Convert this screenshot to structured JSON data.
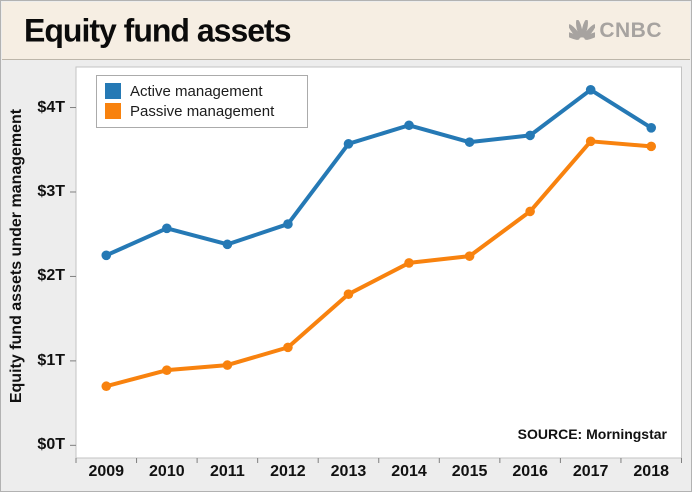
{
  "header": {
    "title": "Equity fund assets",
    "brand": "CNBC"
  },
  "source_note": "SOURCE: Morningstar",
  "icons": {
    "brand_icon": "nbc-peacock-icon"
  },
  "colors": {
    "active_blue": "#2579b5",
    "passive_orange": "#f8820e",
    "header_bg": "#f6eee3",
    "chart_bg": "#ededed",
    "plot_bg": "#ffffff",
    "plot_border": "#c3c3c3",
    "tick_gray": "#7f7f7f",
    "brand_gray": "#a7a3a0",
    "text": "#111111"
  },
  "chart_data": {
    "type": "line",
    "title": "Equity fund assets",
    "ylabel": "Equity fund assets under management",
    "xlabel": "",
    "units": "trillions of dollars",
    "categories": [
      "2009",
      "2010",
      "2011",
      "2012",
      "2013",
      "2014",
      "2015",
      "2016",
      "2017",
      "2018"
    ],
    "ylim": [
      -0.15,
      4.48
    ],
    "grid": false,
    "legend_position": "top-left",
    "yticks": [
      {
        "label": "$4T",
        "value": 4
      },
      {
        "label": "$3T",
        "value": 3
      },
      {
        "label": "$2T",
        "value": 2
      },
      {
        "label": "$1T",
        "value": 1
      },
      {
        "label": "$0T",
        "value": 0
      }
    ],
    "series": [
      {
        "name": "Active management",
        "color": "#2579b5",
        "values": [
          2.25,
          2.57,
          2.38,
          2.62,
          3.57,
          3.79,
          3.59,
          3.67,
          4.21,
          3.76
        ]
      },
      {
        "name": "Passive management",
        "color": "#f8820e",
        "values": [
          0.7,
          0.89,
          0.95,
          1.16,
          1.79,
          2.16,
          2.24,
          2.77,
          3.6,
          3.54
        ]
      }
    ]
  }
}
